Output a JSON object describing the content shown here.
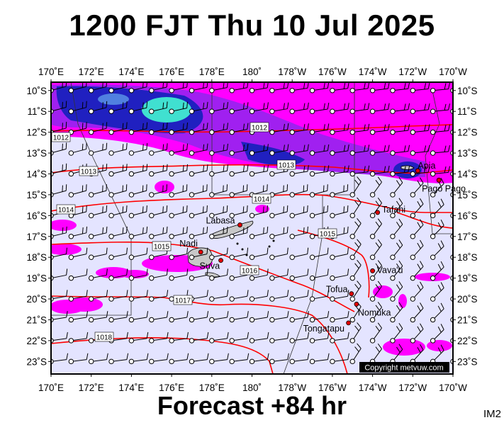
{
  "header": {
    "title": "1200 FJT Thu 10 Jul 2025"
  },
  "footer": {
    "forecast": "Forecast +84 hr",
    "image_code": "IM2"
  },
  "copyright": "Copyright metvuw.com",
  "map": {
    "lon_labels": [
      "170˚E",
      "172˚E",
      "174˚E",
      "176˚E",
      "178˚E",
      "180˚",
      "178˚W",
      "176˚W",
      "174˚W",
      "172˚W",
      "170˚W"
    ],
    "lat_labels": [
      "10˚S",
      "11˚S",
      "12˚S",
      "13˚S",
      "14˚S",
      "15˚S",
      "16˚S",
      "17˚S",
      "18˚S",
      "19˚S",
      "20˚S",
      "21˚S",
      "22˚S",
      "23˚S"
    ],
    "places": [
      {
        "name": "Labasa",
        "lon": 179.4,
        "lat": -16.45,
        "dot": true
      },
      {
        "name": "Nadi",
        "lon": 177.45,
        "lat": -17.75,
        "dot": true
      },
      {
        "name": "Suva",
        "lon": 178.45,
        "lat": -18.15,
        "dot": true
      },
      {
        "name": "Apia",
        "lon": -171.75,
        "lat": -13.85,
        "dot": true
      },
      {
        "name": "Pago Pago",
        "lon": -170.7,
        "lat": -14.3,
        "dot": true
      },
      {
        "name": "Tafahi",
        "lon": -173.75,
        "lat": -15.85,
        "dot": true
      },
      {
        "name": "Vava'u",
        "lon": -174.0,
        "lat": -18.65,
        "dot": true
      },
      {
        "name": "Tofua",
        "lon": -175.05,
        "lat": -19.75,
        "dot": true
      },
      {
        "name": "Nomuka",
        "lon": -174.8,
        "lat": -20.25,
        "dot": true
      },
      {
        "name": "Tongatapu",
        "lon": -175.2,
        "lat": -21.15,
        "dot": true
      }
    ],
    "isobar_labels": [
      "1012",
      "1012",
      "1013",
      "1013",
      "1014",
      "1014",
      "1015",
      "1015",
      "1016",
      "1017",
      "1018"
    ],
    "colors": {
      "background": "#e4e4ff",
      "isobar": "#ff0000",
      "rain_magenta": "#ff00ff",
      "rain_purple": "#a020f0",
      "rain_blue": "#2020c0",
      "rain_cyan": "#40e0d0"
    }
  }
}
